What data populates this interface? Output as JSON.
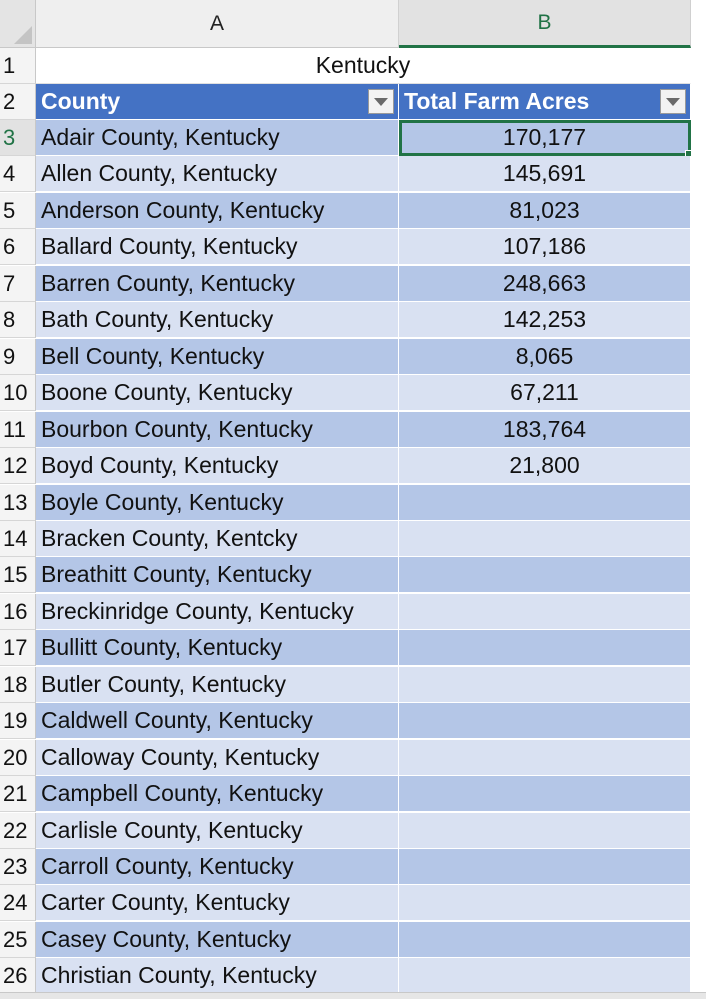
{
  "columns": [
    {
      "letter": "A",
      "selected": false
    },
    {
      "letter": "B",
      "selected": true
    }
  ],
  "title_row": {
    "number": "1",
    "text": "Kentucky"
  },
  "header_row": {
    "number": "2",
    "col_a": "County",
    "col_b": "Total Farm Acres"
  },
  "active_cell": "B3",
  "rows": [
    {
      "num": "3",
      "county": "Adair County, Kentucky",
      "acres": "170,177"
    },
    {
      "num": "4",
      "county": "Allen County, Kentucky",
      "acres": "145,691"
    },
    {
      "num": "5",
      "county": "Anderson County, Kentucky",
      "acres": "81,023"
    },
    {
      "num": "6",
      "county": "Ballard County, Kentucky",
      "acres": "107,186"
    },
    {
      "num": "7",
      "county": "Barren County, Kentucky",
      "acres": "248,663"
    },
    {
      "num": "8",
      "county": "Bath County, Kentucky",
      "acres": "142,253"
    },
    {
      "num": "9",
      "county": "Bell County, Kentucky",
      "acres": "8,065"
    },
    {
      "num": "10",
      "county": "Boone County, Kentucky",
      "acres": "67,211"
    },
    {
      "num": "11",
      "county": "Bourbon County, Kentucky",
      "acres": "183,764"
    },
    {
      "num": "12",
      "county": "Boyd County, Kentucky",
      "acres": "21,800"
    },
    {
      "num": "13",
      "county": "Boyle County, Kentucky",
      "acres": ""
    },
    {
      "num": "14",
      "county": "Bracken County, Kentcky",
      "acres": ""
    },
    {
      "num": "15",
      "county": "Breathitt County, Kentucky",
      "acres": ""
    },
    {
      "num": "16",
      "county": "Breckinridge County, Kentucky",
      "acres": ""
    },
    {
      "num": "17",
      "county": "Bullitt County, Kentucky",
      "acres": ""
    },
    {
      "num": "18",
      "county": "Butler County, Kentucky",
      "acres": ""
    },
    {
      "num": "19",
      "county": "Caldwell County, Kentucky",
      "acres": ""
    },
    {
      "num": "20",
      "county": "Calloway County, Kentucky",
      "acres": ""
    },
    {
      "num": "21",
      "county": "Campbell County, Kentucky",
      "acres": ""
    },
    {
      "num": "22",
      "county": "Carlisle County, Kentucky",
      "acres": ""
    },
    {
      "num": "23",
      "county": "Carroll County, Kentucky",
      "acres": ""
    },
    {
      "num": "24",
      "county": "Carter County, Kentucky",
      "acres": ""
    },
    {
      "num": "25",
      "county": "Casey County, Kentucky",
      "acres": ""
    },
    {
      "num": "26",
      "county": "Christian County, Kentucky",
      "acres": ""
    }
  ],
  "colors": {
    "header_fill": "#4472c4",
    "band_dark": "#b4c6e7",
    "band_light": "#d9e1f2",
    "selection": "#217346"
  }
}
